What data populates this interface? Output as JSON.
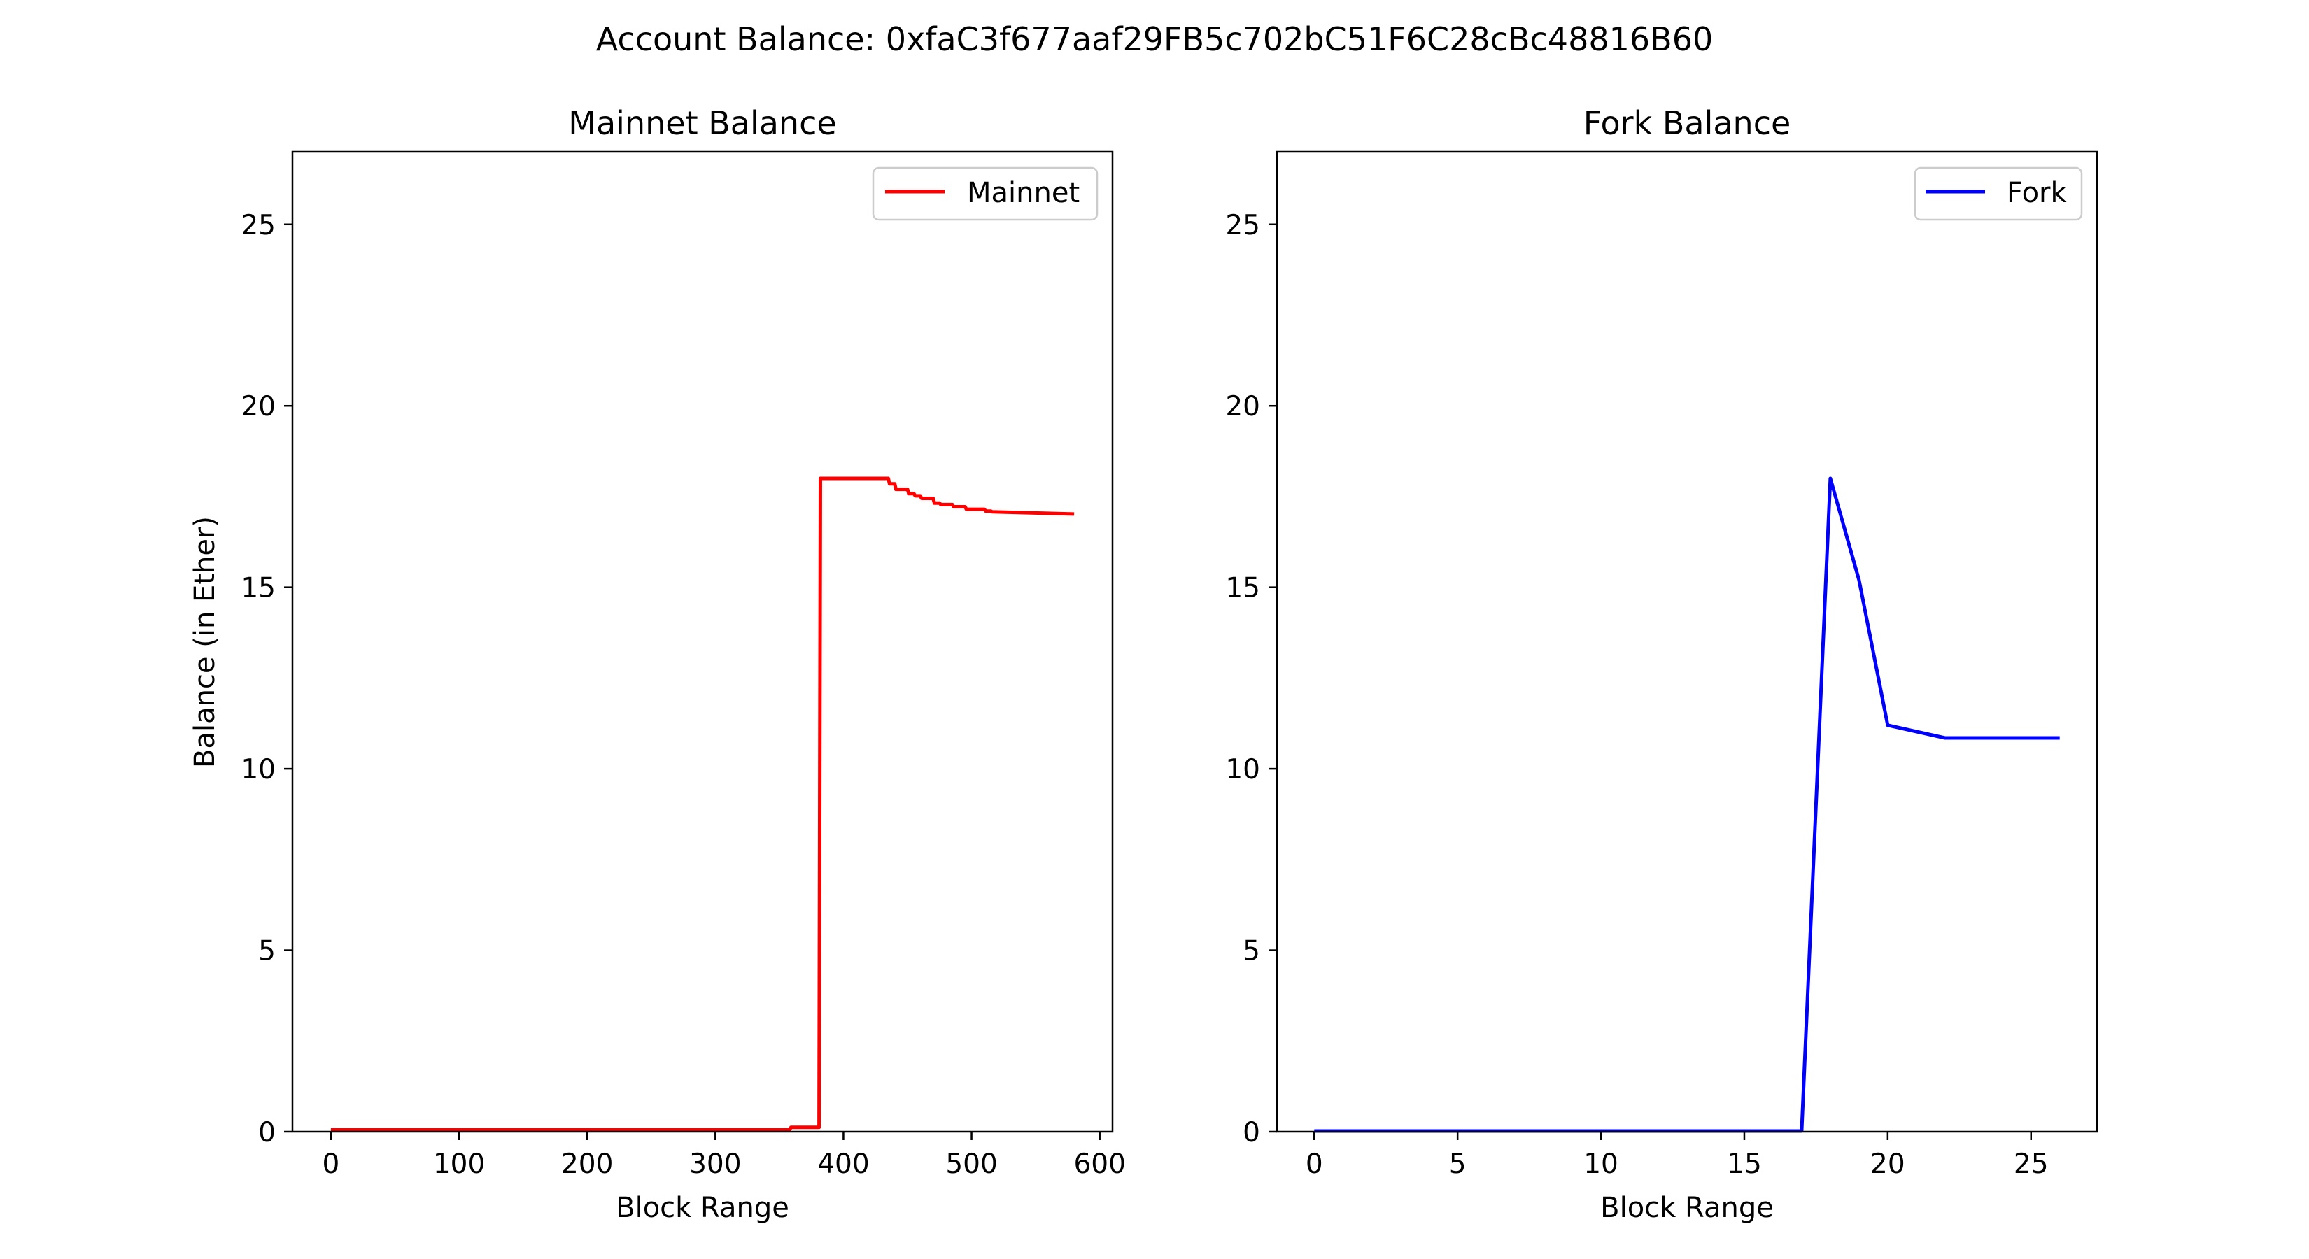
{
  "figure": {
    "suptitle": "Account Balance: 0xfaC3f677aaf29FB5c702bC51F6C28cBc48816B60"
  },
  "chart_data": [
    {
      "type": "line",
      "title": "Mainnet Balance",
      "xlabel": "Block Range",
      "ylabel": "Balance (in Ether)",
      "xlim": [
        -30,
        610
      ],
      "ylim": [
        0,
        27
      ],
      "xticks": [
        0,
        100,
        200,
        300,
        400,
        500,
        600
      ],
      "yticks": [
        0,
        5,
        10,
        15,
        20,
        25
      ],
      "grid": false,
      "legend_position": "upper right",
      "series": [
        {
          "name": "Mainnet",
          "color": "#ff0000",
          "x": [
            0,
            358,
            359,
            381,
            382,
            430,
            435,
            436,
            440,
            441,
            450,
            451,
            455,
            456,
            460,
            461,
            470,
            471,
            475,
            476,
            485,
            486,
            495,
            496,
            510,
            511,
            515,
            516,
            580
          ],
          "y": [
            0.05,
            0.05,
            0.12,
            0.12,
            18.0,
            18.0,
            18.0,
            17.85,
            17.85,
            17.7,
            17.7,
            17.58,
            17.58,
            17.52,
            17.52,
            17.45,
            17.45,
            17.32,
            17.32,
            17.28,
            17.28,
            17.22,
            17.22,
            17.15,
            17.15,
            17.1,
            17.1,
            17.08,
            17.02
          ]
        }
      ]
    },
    {
      "type": "line",
      "title": "Fork Balance",
      "xlabel": "Block Range",
      "ylabel": "",
      "xlim": [
        -1.3,
        27.3
      ],
      "ylim": [
        0,
        27
      ],
      "xticks": [
        0,
        5,
        10,
        15,
        20,
        25
      ],
      "yticks": [
        0,
        5,
        10,
        15,
        20,
        25
      ],
      "grid": false,
      "legend_position": "upper right",
      "series": [
        {
          "name": "Fork",
          "color": "#0000ff",
          "x": [
            0,
            17,
            18,
            19,
            20,
            22,
            24,
            26
          ],
          "y": [
            0.02,
            0.02,
            18.0,
            15.2,
            11.2,
            10.85,
            10.85,
            10.85
          ]
        }
      ]
    }
  ]
}
